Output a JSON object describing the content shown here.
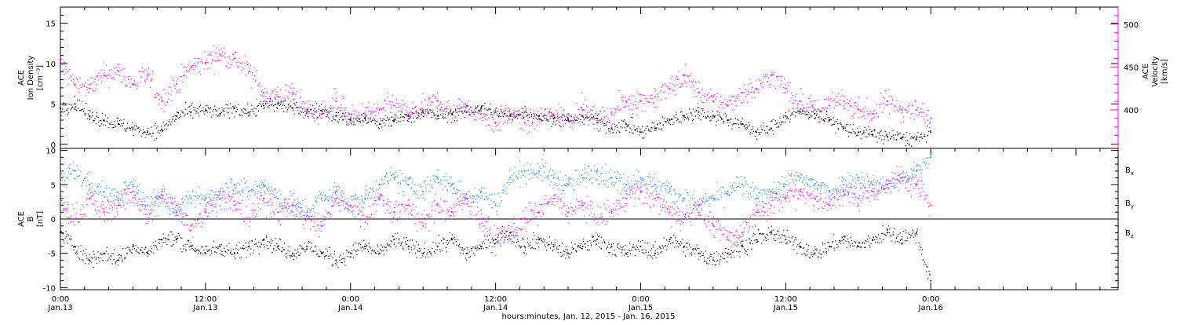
{
  "chart_data": [
    {
      "type": "scatter",
      "xlim": [
        0,
        3.6458
      ],
      "x_tick_labels": [
        {
          "x": 0.0,
          "lines": [
            "0:00",
            "Jan.13"
          ]
        },
        {
          "x": 0.5,
          "lines": [
            "12:00",
            "Jan.13"
          ]
        },
        {
          "x": 1.0,
          "lines": [
            "0:00",
            "Jan.14"
          ]
        },
        {
          "x": 1.5,
          "lines": [
            "12:00",
            "Jan.14"
          ]
        },
        {
          "x": 2.0,
          "lines": [
            "0:00",
            "Jan.15"
          ]
        },
        {
          "x": 2.5,
          "lines": [
            "12:00",
            "Jan.15"
          ]
        },
        {
          "x": 3.0,
          "lines": [
            "0:00",
            "Jan.16"
          ]
        }
      ],
      "x_minor_ticks_per_day": 12,
      "xlabel": "hours:minutes, Jan. 12, 2015 - Jan. 16, 2015",
      "left_axis": {
        "label_lines": [
          "ACE",
          "Ion Density",
          "[cm⁻³]"
        ],
        "ylim": [
          -0.5,
          17
        ],
        "ticks": [
          0,
          5,
          10,
          15
        ],
        "tick_labels": [
          "0",
          "5",
          "10",
          "15"
        ]
      },
      "right_axis": {
        "label_lines": [
          "ACE",
          "Velocity",
          "[km/s]"
        ],
        "ylim": [
          355,
          520
        ],
        "ticks": [
          400,
          450,
          500
        ],
        "tick_labels": [
          "400",
          "450",
          "500"
        ],
        "color": "#ff00ff"
      },
      "series": [
        {
          "color": "#000000",
          "axis": "left",
          "x": [
            0.0,
            0.05,
            0.1,
            0.15,
            0.2,
            0.25,
            0.3,
            0.35,
            0.4,
            0.45,
            0.5,
            0.55,
            0.6,
            0.65,
            0.7,
            0.75,
            0.8,
            0.85,
            0.9,
            0.95,
            1.0,
            1.05,
            1.1,
            1.15,
            1.2,
            1.25,
            1.3,
            1.35,
            1.4,
            1.45,
            1.5,
            1.55,
            1.6,
            1.65,
            1.7,
            1.75,
            1.8,
            1.85,
            1.9,
            1.95,
            2.0,
            2.05,
            2.1,
            2.15,
            2.2,
            2.25,
            2.3,
            2.35,
            2.4,
            2.45,
            2.5,
            2.55,
            2.6,
            2.65,
            2.7,
            2.75,
            2.8,
            2.85,
            2.9,
            2.95,
            3.0
          ],
          "y": [
            4.5,
            5.0,
            3.5,
            3.0,
            2.5,
            2.0,
            1.5,
            1.8,
            3.5,
            4.0,
            4.2,
            3.8,
            4.5,
            4.0,
            4.8,
            5.0,
            4.5,
            4.0,
            4.2,
            3.5,
            3.0,
            3.2,
            2.5,
            3.0,
            3.5,
            4.0,
            3.5,
            3.8,
            4.0,
            4.5,
            4.0,
            3.5,
            4.0,
            3.5,
            3.2,
            3.0,
            3.5,
            3.2,
            2.0,
            2.5,
            1.5,
            2.0,
            3.0,
            3.5,
            4.0,
            3.5,
            3.0,
            2.5,
            1.5,
            2.0,
            3.5,
            4.0,
            3.8,
            3.0,
            2.0,
            1.5,
            1.2,
            1.0,
            0.8,
            0.6,
            1.5
          ]
        },
        {
          "color": "#ff00ff",
          "axis": "right",
          "x": [
            0.0,
            0.05,
            0.1,
            0.15,
            0.2,
            0.25,
            0.3,
            0.35,
            0.4,
            0.45,
            0.5,
            0.55,
            0.6,
            0.65,
            0.7,
            0.75,
            0.8,
            0.85,
            0.9,
            0.95,
            1.0,
            1.05,
            1.1,
            1.15,
            1.2,
            1.25,
            1.3,
            1.35,
            1.4,
            1.45,
            1.5,
            1.55,
            1.6,
            1.65,
            1.7,
            1.75,
            1.8,
            1.85,
            1.9,
            1.95,
            2.0,
            2.05,
            2.1,
            2.15,
            2.2,
            2.25,
            2.3,
            2.35,
            2.4,
            2.45,
            2.5,
            2.55,
            2.6,
            2.65,
            2.7,
            2.75,
            2.8,
            2.85,
            2.9,
            2.95,
            3.0
          ],
          "y": [
            455,
            430,
            425,
            440,
            445,
            430,
            440,
            410,
            430,
            450,
            455,
            465,
            460,
            445,
            420,
            415,
            420,
            400,
            395,
            410,
            390,
            395,
            400,
            405,
            395,
            400,
            410,
            395,
            405,
            395,
            385,
            395,
            385,
            390,
            395,
            390,
            400,
            385,
            395,
            410,
            410,
            415,
            425,
            440,
            420,
            410,
            405,
            420,
            425,
            440,
            425,
            410,
            400,
            405,
            410,
            400,
            395,
            410,
            400,
            400,
            390
          ]
        }
      ]
    },
    {
      "type": "scatter",
      "xlim": [
        0,
        3.6458
      ],
      "ylim": [
        -10.3,
        10.3
      ],
      "ylabel_lines": [
        "ACE",
        "B",
        "[nT]"
      ],
      "y_ticks": [
        -10,
        -5,
        0,
        5,
        10
      ],
      "y_tick_labels": [
        "-10",
        "-5",
        "0",
        "5",
        "10"
      ],
      "zero_line": true,
      "legend_placement": "right",
      "legend": [
        {
          "base": "B",
          "sub": "x",
          "color": "#000000"
        },
        {
          "base": "B",
          "sub": "y",
          "color": "#1a88ff"
        },
        {
          "base": "B",
          "sub": "z",
          "color": "#ff00ff"
        }
      ],
      "series": [
        {
          "color": "#000000",
          "x": [
            0.0,
            0.05,
            0.1,
            0.15,
            0.2,
            0.25,
            0.3,
            0.35,
            0.4,
            0.45,
            0.5,
            0.55,
            0.6,
            0.65,
            0.7,
            0.75,
            0.8,
            0.85,
            0.9,
            0.95,
            1.0,
            1.05,
            1.1,
            1.15,
            1.2,
            1.25,
            1.3,
            1.35,
            1.4,
            1.45,
            1.5,
            1.55,
            1.6,
            1.65,
            1.7,
            1.75,
            1.8,
            1.85,
            1.9,
            1.95,
            2.0,
            2.05,
            2.1,
            2.15,
            2.2,
            2.25,
            2.3,
            2.35,
            2.4,
            2.45,
            2.5,
            2.55,
            2.6,
            2.65,
            2.7,
            2.75,
            2.8,
            2.85,
            2.9,
            2.95,
            3.0
          ],
          "y": [
            -2,
            -4,
            -6,
            -5,
            -6,
            -4,
            -5,
            -3,
            -3,
            -4,
            -5,
            -4,
            -5,
            -4,
            -3,
            -4,
            -5,
            -4,
            -5,
            -6,
            -5,
            -4,
            -5,
            -3,
            -4,
            -5,
            -4,
            -3,
            -5,
            -4,
            -3,
            -2,
            -4,
            -3,
            -4,
            -5,
            -4,
            -3,
            -4,
            -5,
            -4,
            -5,
            -3,
            -4,
            -5,
            -6,
            -5,
            -4,
            -3,
            -2,
            -3,
            -4,
            -5,
            -4,
            -3,
            -4,
            -3,
            -2,
            -3,
            -2,
            -9
          ]
        },
        {
          "color": "#1a88ff",
          "x": [
            0.0,
            0.05,
            0.1,
            0.15,
            0.2,
            0.25,
            0.3,
            0.35,
            0.4,
            0.45,
            0.5,
            0.55,
            0.6,
            0.65,
            0.7,
            0.75,
            0.8,
            0.85,
            0.9,
            0.95,
            1.0,
            1.05,
            1.1,
            1.15,
            1.2,
            1.25,
            1.3,
            1.35,
            1.4,
            1.45,
            1.5,
            1.55,
            1.6,
            1.65,
            1.7,
            1.75,
            1.8,
            1.85,
            1.9,
            1.95,
            2.0,
            2.05,
            2.1,
            2.15,
            2.2,
            2.25,
            2.3,
            2.35,
            2.4,
            2.45,
            2.5,
            2.55,
            2.6,
            2.65,
            2.7,
            2.75,
            2.8,
            2.85,
            2.9,
            2.95,
            3.0
          ],
          "y": [
            6,
            7,
            5,
            4,
            3,
            5,
            2,
            4,
            1,
            3,
            3,
            4,
            5,
            4,
            5,
            3,
            2,
            1,
            3,
            4,
            2,
            3,
            5,
            6,
            5,
            4,
            6,
            5,
            3,
            4,
            2,
            6,
            7,
            7,
            6,
            5,
            6,
            7,
            6,
            5,
            6,
            5,
            4,
            3,
            2,
            3,
            4,
            5,
            3,
            4,
            5,
            6,
            5,
            4,
            5,
            6,
            5,
            5,
            6,
            7,
            9
          ]
        },
        {
          "color": "#ff00ff",
          "x": [
            0.0,
            0.05,
            0.1,
            0.15,
            0.2,
            0.25,
            0.3,
            0.35,
            0.4,
            0.45,
            0.5,
            0.55,
            0.6,
            0.65,
            0.7,
            0.75,
            0.8,
            0.85,
            0.9,
            0.95,
            1.0,
            1.05,
            1.1,
            1.15,
            1.2,
            1.25,
            1.3,
            1.35,
            1.4,
            1.45,
            1.5,
            1.55,
            1.6,
            1.65,
            1.7,
            1.75,
            1.8,
            1.85,
            1.9,
            1.95,
            2.0,
            2.05,
            2.1,
            2.15,
            2.2,
            2.25,
            2.3,
            2.35,
            2.4,
            2.45,
            2.5,
            2.55,
            2.6,
            2.65,
            2.7,
            2.75,
            2.8,
            2.85,
            2.9,
            2.95,
            3.0
          ],
          "y": [
            2,
            0,
            3,
            1,
            2,
            4,
            0,
            3,
            2,
            -1,
            1,
            3,
            2,
            0,
            3,
            1,
            2,
            0,
            -1,
            3,
            2,
            0,
            3,
            1,
            2,
            -1,
            2,
            1,
            3,
            0,
            -3,
            -2,
            0,
            1,
            3,
            1,
            2,
            0,
            1,
            3,
            4,
            3,
            1,
            0,
            2,
            -1,
            -3,
            -2,
            1,
            2,
            3,
            4,
            3,
            2,
            4,
            3,
            4,
            5,
            6,
            5,
            2
          ]
        }
      ]
    }
  ]
}
